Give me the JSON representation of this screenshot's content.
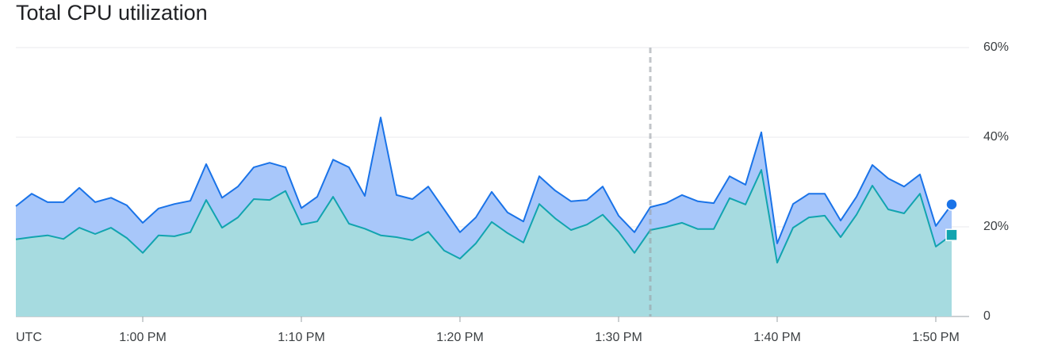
{
  "chart_data": {
    "type": "area",
    "title": "Total CPU utilization",
    "x_label": "UTC",
    "x": [
      "12:52",
      "12:53",
      "12:54",
      "12:55",
      "12:56",
      "12:57",
      "12:58",
      "12:59",
      "13:00",
      "13:01",
      "13:02",
      "13:03",
      "13:04",
      "13:05",
      "13:06",
      "13:07",
      "13:08",
      "13:09",
      "13:10",
      "13:11",
      "13:12",
      "13:13",
      "13:14",
      "13:15",
      "13:16",
      "13:17",
      "13:18",
      "13:19",
      "13:20",
      "13:21",
      "13:22",
      "13:23",
      "13:24",
      "13:25",
      "13:26",
      "13:27",
      "13:28",
      "13:29",
      "13:30",
      "13:31",
      "13:32",
      "13:33",
      "13:34",
      "13:35",
      "13:36",
      "13:37",
      "13:38",
      "13:39",
      "13:40",
      "13:41",
      "13:42",
      "13:43",
      "13:44",
      "13:45",
      "13:46",
      "13:47",
      "13:48",
      "13:49",
      "13:50",
      "13:51"
    ],
    "series": [
      {
        "color": "#1a73e8",
        "fill": "#a8c7fa",
        "marker": "circle",
        "values": [
          24.6,
          27.4,
          25.5,
          25.5,
          28.7,
          25.5,
          26.5,
          24.8,
          20.9,
          24.1,
          25.1,
          25.8,
          34.0,
          26.5,
          29.0,
          33.3,
          34.3,
          33.3,
          24.2,
          26.7,
          35.0,
          33.3,
          26.9,
          44.4,
          27.1,
          26.2,
          29.0,
          23.9,
          18.8,
          22.1,
          27.8,
          23.2,
          21.2,
          31.3,
          28.1,
          25.7,
          26.0,
          29.0,
          22.5,
          18.8,
          24.4,
          25.3,
          27.1,
          25.7,
          25.3,
          31.3,
          29.4,
          41.1,
          16.3,
          25.1,
          27.4,
          27.4,
          21.4,
          26.7,
          33.8,
          30.8,
          29.0,
          31.7,
          20.2,
          25.0
        ]
      },
      {
        "color": "#12a4af",
        "fill": "#a6dbe0",
        "marker": "square",
        "values": [
          17.2,
          17.7,
          18.1,
          17.3,
          19.8,
          18.4,
          19.8,
          17.5,
          14.2,
          18.1,
          17.9,
          18.8,
          26.0,
          19.8,
          22.1,
          26.2,
          26.0,
          28.0,
          20.5,
          21.2,
          26.7,
          20.7,
          19.6,
          18.1,
          17.7,
          17.0,
          18.9,
          14.7,
          12.9,
          16.3,
          21.1,
          18.6,
          16.5,
          25.1,
          21.9,
          19.3,
          20.5,
          22.7,
          18.9,
          14.2,
          19.3,
          20.0,
          20.9,
          19.5,
          19.5,
          26.4,
          25.0,
          32.7,
          12.0,
          19.8,
          22.1,
          22.5,
          17.7,
          22.7,
          29.2,
          23.9,
          23.0,
          27.4,
          15.6,
          18.2
        ]
      }
    ],
    "xlim": [
      "12:52",
      "13:51"
    ],
    "xticks": [
      {
        "value": "13:00",
        "label": "1:00 PM"
      },
      {
        "value": "13:10",
        "label": "1:10 PM"
      },
      {
        "value": "13:20",
        "label": "1:20 PM"
      },
      {
        "value": "13:30",
        "label": "1:30 PM"
      },
      {
        "value": "13:40",
        "label": "1:40 PM"
      },
      {
        "value": "13:50",
        "label": "1:50 PM"
      }
    ],
    "ylim": [
      0,
      60
    ],
    "yticks": [
      0,
      {
        "value": 20,
        "label": "20%"
      },
      {
        "value": 40,
        "label": "40%"
      },
      {
        "value": 60,
        "label": "60%"
      }
    ],
    "grid": true,
    "vline_x": "13:32"
  }
}
